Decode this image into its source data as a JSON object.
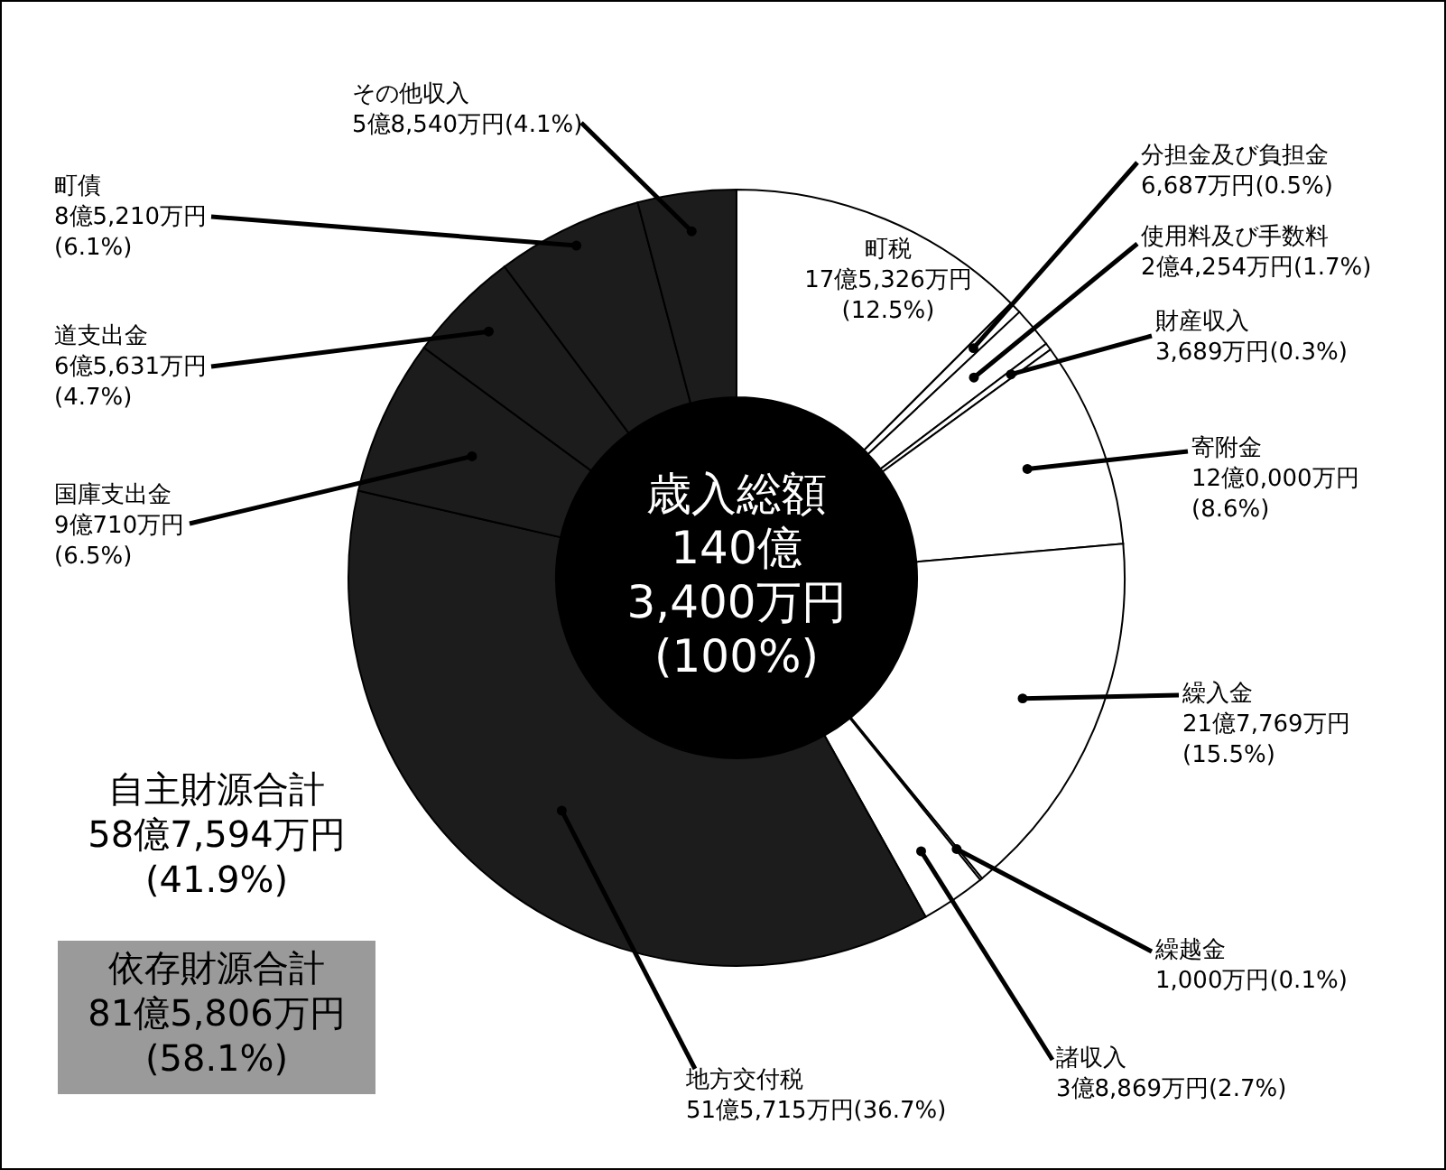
{
  "chart_data": {
    "type": "donut",
    "categories": [
      "町税",
      "分担金及び負担金",
      "使用料及び手数料",
      "財産収入",
      "寄附金",
      "繰入金",
      "繰越金",
      "諸収入",
      "地方交付税",
      "国庫支出金",
      "道支出金",
      "町債",
      "その他収入"
    ],
    "values": [
      12.5,
      0.5,
      1.7,
      0.3,
      8.6,
      15.5,
      0.1,
      2.7,
      36.7,
      6.5,
      4.7,
      6.1,
      4.1
    ],
    "colors": [
      "#ffffff",
      "#ffffff",
      "#ffffff",
      "#ffffff",
      "#ffffff",
      "#ffffff",
      "#ffffff",
      "#ffffff",
      "#1c1c1c",
      "#1c1c1c",
      "#1c1c1c",
      "#1c1c1c",
      "#1c1c1c"
    ],
    "value_labels": [
      "17億5,326万円(12.5%)",
      "6,687万円(0.5%)",
      "2億4,254万円(1.7%)",
      "3,689万円(0.3%)",
      "12億0,000万円(8.6%)",
      "21億7,769万円(15.5%)",
      "1,000万円(0.1%)",
      "3億8,869万円(2.7%)",
      "51億5,715万円(36.7%)",
      "9億710万円(6.5%)",
      "6億5,631万円(4.7%)",
      "8億5,210万円(6.1%)",
      "5億8,540万円(4.1%)"
    ],
    "annotations": [
      "歳入総額 140億 3,400万円 (100%)",
      "自主財源合計 58億7,594万円 (41.9%)",
      "依存財源合計 81億5,806万円 (58.1%)"
    ]
  }
}
